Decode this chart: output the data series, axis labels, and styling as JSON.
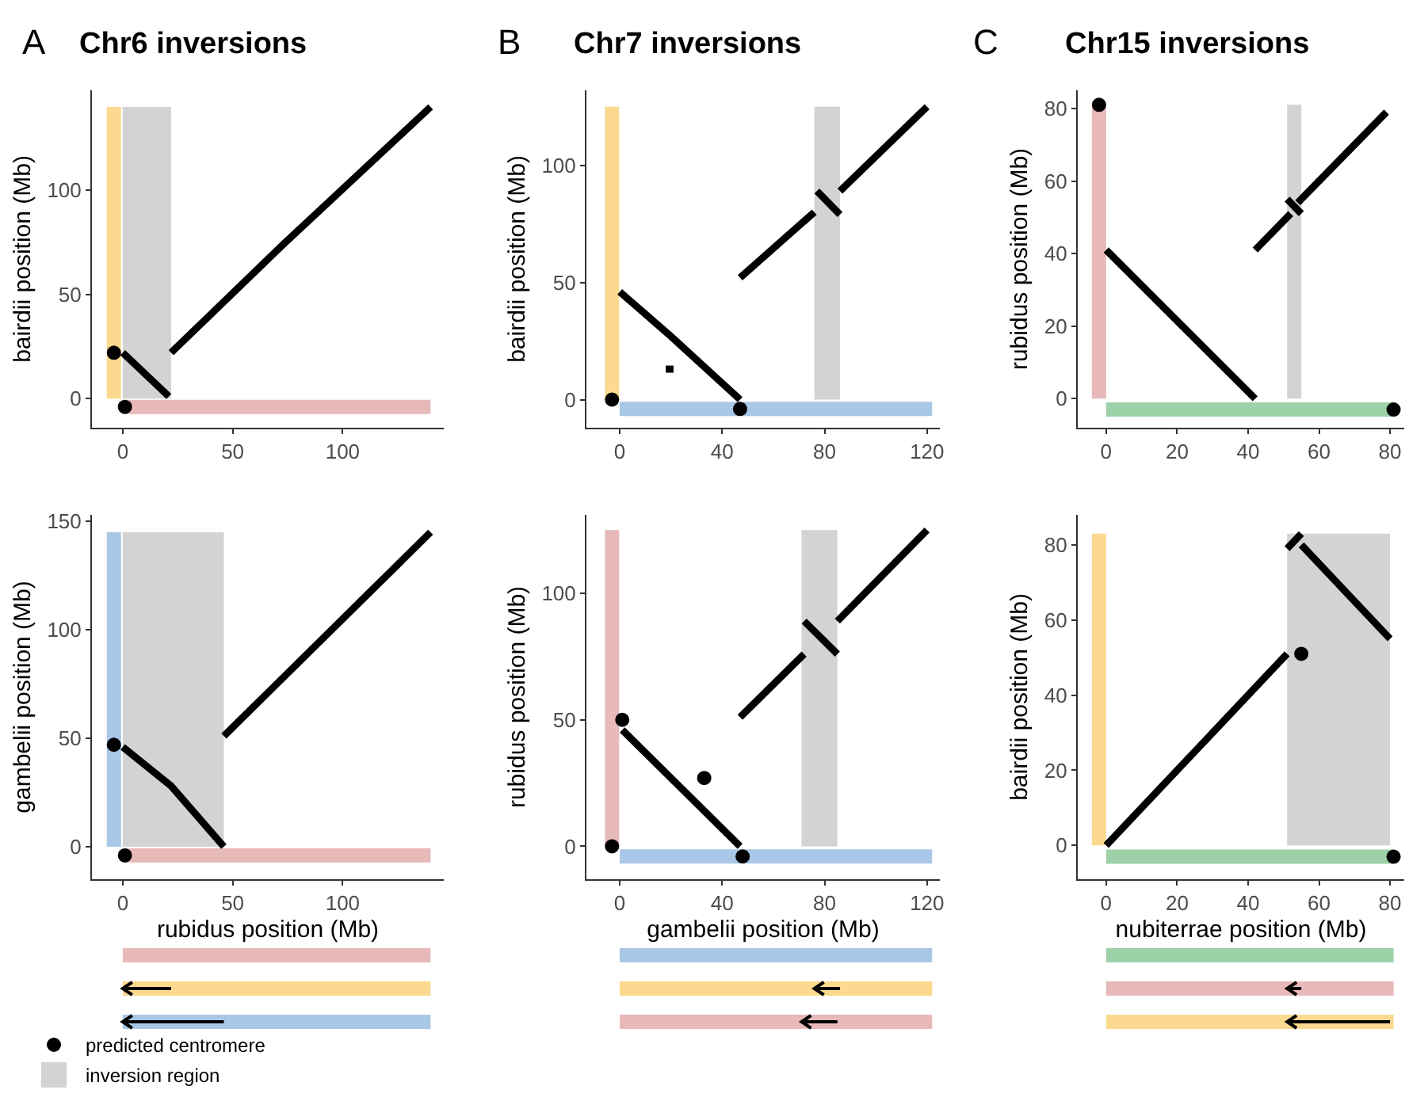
{
  "chart_data": [
    {
      "type": "line",
      "title": "Chr6 inversions",
      "annotations": [
        "A"
      ],
      "grid": false,
      "xlim": [
        -14,
        146
      ],
      "xticks": [
        0,
        50,
        100
      ],
      "ylim": [
        -14,
        148
      ],
      "yticks": [
        0,
        50,
        100
      ],
      "ylabel": "bairdii position (Mb)",
      "bands": [
        {
          "axis": "x",
          "from": 0,
          "to": 22,
          "color": "#d3d3d3"
        }
      ],
      "series": [
        {
          "color": "#fbd98e",
          "x": [
            -4,
            -4
          ],
          "values": [
            0,
            140
          ]
        },
        {
          "color": "#e8b9b9",
          "x": [
            0,
            140
          ],
          "values": [
            -4,
            -4
          ]
        },
        {
          "color": "#000000",
          "x": [
            0,
            21
          ],
          "values": [
            22,
            1
          ]
        },
        {
          "color": "#000000",
          "x": [
            22,
            73,
            140
          ],
          "values": [
            22,
            74,
            140
          ]
        },
        {
          "type": "scatter",
          "color": "#000000",
          "x": [
            -4,
            1
          ],
          "values": [
            22,
            -4
          ]
        }
      ]
    },
    {
      "type": "line",
      "title": "Chr7 inversions",
      "annotations": [
        "B"
      ],
      "grid": false,
      "xlim": [
        -13,
        125
      ],
      "xticks": [
        0,
        40,
        80,
        120
      ],
      "ylim": [
        -12,
        132
      ],
      "yticks": [
        0,
        50,
        100
      ],
      "ylabel": "bairdii position (Mb)",
      "bands": [
        {
          "axis": "x",
          "from": 76,
          "to": 86,
          "color": "#d3d3d3"
        }
      ],
      "series": [
        {
          "color": "#fbd98e",
          "x": [
            -3,
            -3
          ],
          "values": [
            0,
            125
          ]
        },
        {
          "color": "#a9c7e6",
          "x": [
            0,
            122
          ],
          "values": [
            -4,
            -4
          ]
        },
        {
          "color": "#000000",
          "x": [
            0,
            20,
            47
          ],
          "values": [
            46,
            27,
            0
          ]
        },
        {
          "color": "#000000",
          "x": [
            18,
            21
          ],
          "values": [
            13,
            13
          ]
        },
        {
          "color": "#000000",
          "x": [
            47,
            76
          ],
          "values": [
            52,
            80
          ]
        },
        {
          "color": "#000000",
          "x": [
            77,
            86
          ],
          "values": [
            89,
            79
          ]
        },
        {
          "color": "#000000",
          "x": [
            86,
            120
          ],
          "values": [
            89,
            125
          ]
        },
        {
          "type": "scatter",
          "color": "#000000",
          "x": [
            -3,
            47
          ],
          "values": [
            0,
            -4
          ]
        }
      ]
    },
    {
      "type": "line",
      "title": "Chr15 inversions",
      "annotations": [
        "C"
      ],
      "grid": false,
      "xlim": [
        -8,
        84
      ],
      "xticks": [
        0,
        20,
        40,
        60,
        80
      ],
      "ylim": [
        -8,
        85
      ],
      "yticks": [
        0,
        20,
        40,
        60,
        80
      ],
      "ylabel": "rubidus position (Mb)",
      "bands": [
        {
          "axis": "x",
          "from": 51,
          "to": 55,
          "color": "#d3d3d3"
        }
      ],
      "series": [
        {
          "color": "#e8b9b9",
          "x": [
            -2,
            -2
          ],
          "values": [
            0,
            81
          ]
        },
        {
          "color": "#9dd1a8",
          "x": [
            0,
            81
          ],
          "values": [
            -3,
            -3
          ]
        },
        {
          "color": "#000000",
          "x": [
            0,
            42
          ],
          "values": [
            41,
            0
          ]
        },
        {
          "color": "#000000",
          "x": [
            42,
            52
          ],
          "values": [
            41,
            51
          ]
        },
        {
          "color": "#000000",
          "x": [
            51,
            55
          ],
          "values": [
            55,
            51
          ]
        },
        {
          "color": "#000000",
          "x": [
            54,
            79
          ],
          "values": [
            54,
            79
          ]
        },
        {
          "type": "scatter",
          "color": "#000000",
          "x": [
            -2,
            81
          ],
          "values": [
            81,
            -3
          ]
        }
      ]
    },
    {
      "type": "line",
      "grid": false,
      "legend": "bottom",
      "xlim": [
        -14,
        146
      ],
      "xticks": [
        0,
        50,
        100
      ],
      "ylim": [
        -15,
        153
      ],
      "yticks": [
        0,
        50,
        100,
        150
      ],
      "xlabel": "rubidus position (Mb)",
      "ylabel": "gambelii position (Mb)",
      "bands": [
        {
          "axis": "x",
          "from": 0,
          "to": 46,
          "color": "#d3d3d3",
          "label": "inversion region"
        }
      ],
      "series": [
        {
          "color": "#a9c7e6",
          "x": [
            -4,
            -4
          ],
          "values": [
            0,
            145
          ]
        },
        {
          "color": "#e8b9b9",
          "x": [
            0,
            140
          ],
          "values": [
            -4,
            -4
          ]
        },
        {
          "color": "#000000",
          "x": [
            0,
            22,
            46
          ],
          "values": [
            46,
            28,
            0
          ]
        },
        {
          "color": "#000000",
          "x": [
            46,
            73,
            140
          ],
          "values": [
            51,
            78,
            145
          ]
        },
        {
          "type": "scatter",
          "name": "predicted centromere",
          "color": "#000000",
          "x": [
            -4,
            1
          ],
          "values": [
            47,
            -4
          ]
        }
      ]
    },
    {
      "type": "line",
      "grid": false,
      "xlim": [
        -13,
        125
      ],
      "xticks": [
        0,
        40,
        80,
        120
      ],
      "ylim": [
        -13,
        131
      ],
      "yticks": [
        0,
        50,
        100
      ],
      "xlabel": "gambelii position (Mb)",
      "ylabel": "rubidus position (Mb)",
      "bands": [
        {
          "axis": "x",
          "from": 71,
          "to": 85,
          "color": "#d3d3d3"
        }
      ],
      "series": [
        {
          "color": "#e8b9b9",
          "x": [
            -3,
            -3
          ],
          "values": [
            0,
            125
          ]
        },
        {
          "color": "#a9c7e6",
          "x": [
            0,
            122
          ],
          "values": [
            -4,
            -4
          ]
        },
        {
          "color": "#000000",
          "x": [
            1,
            47
          ],
          "values": [
            46,
            0
          ]
        },
        {
          "color": "#000000",
          "x": [
            47,
            72
          ],
          "values": [
            51,
            76
          ]
        },
        {
          "color": "#000000",
          "x": [
            72,
            85
          ],
          "values": [
            89,
            76
          ]
        },
        {
          "color": "#000000",
          "x": [
            85,
            120
          ],
          "values": [
            89,
            125
          ]
        },
        {
          "type": "scatter",
          "color": "#000000",
          "x": [
            -3,
            48,
            1,
            33
          ],
          "values": [
            0,
            -4,
            50,
            27
          ]
        }
      ]
    },
    {
      "type": "line",
      "grid": false,
      "xlim": [
        -8,
        84
      ],
      "xticks": [
        0,
        20,
        40,
        60,
        80
      ],
      "ylim": [
        -9,
        88
      ],
      "yticks": [
        0,
        20,
        40,
        60,
        80
      ],
      "xlabel": "nubiterrae position (Mb)",
      "ylabel": "bairdii position (Mb)",
      "bands": [
        {
          "axis": "x",
          "from": 51,
          "to": 80,
          "color": "#d3d3d3"
        }
      ],
      "series": [
        {
          "color": "#fbd98e",
          "x": [
            -2,
            -2
          ],
          "values": [
            0,
            83
          ]
        },
        {
          "color": "#9dd1a8",
          "x": [
            0,
            81
          ],
          "values": [
            -3,
            -3
          ]
        },
        {
          "color": "#000000",
          "x": [
            0,
            51
          ],
          "values": [
            0,
            51
          ]
        },
        {
          "color": "#000000",
          "x": [
            51,
            55
          ],
          "values": [
            79,
            83
          ]
        },
        {
          "color": "#000000",
          "x": [
            55,
            80
          ],
          "values": [
            80,
            55
          ]
        },
        {
          "type": "scatter",
          "color": "#000000",
          "x": [
            55,
            81
          ],
          "values": [
            51,
            -3
          ]
        }
      ]
    }
  ]
}
